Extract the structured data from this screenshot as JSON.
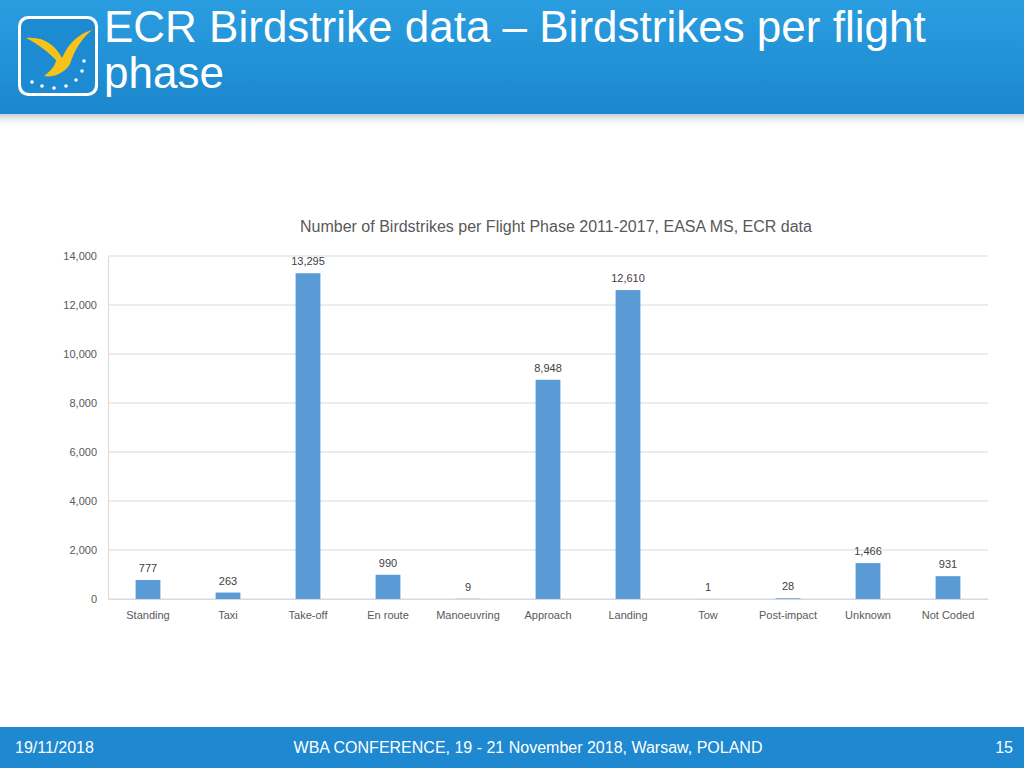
{
  "slide": {
    "title": "ECR Birdstrike data – Birdstrikes per flight phase",
    "footer_date": "19/11/2018",
    "footer_text": "WBA CONFERENCE, 19 - 21 November 2018, Warsaw, POLAND",
    "page_number": 15
  },
  "chart_data": {
    "type": "bar",
    "title": "Number of Birdstrikes per Flight Phase 2011-2017, EASA MS, ECR data",
    "categories": [
      "Standing",
      "Taxi",
      "Take-off",
      "En route",
      "Manoeuvring",
      "Approach",
      "Landing",
      "Tow",
      "Post-impact",
      "Unknown",
      "Not Coded"
    ],
    "values": [
      777,
      263,
      13295,
      990,
      9,
      8948,
      12610,
      1,
      28,
      1466,
      931
    ],
    "value_labels": [
      "777",
      "263",
      "13,295",
      "990",
      "9",
      "8,948",
      "12,610",
      "1",
      "28",
      "1,466",
      "931"
    ],
    "color": "#5b9bd5",
    "ylim": [
      0,
      14000
    ],
    "yticks": [
      0,
      {
        "value": 2000,
        "label": "2,000"
      },
      {
        "value": 4000,
        "label": "4,000"
      },
      {
        "value": 6000,
        "label": "6,000"
      },
      {
        "value": 8000,
        "label": "8,000"
      },
      {
        "value": 10000,
        "label": "10,000"
      },
      {
        "value": 12000,
        "label": "12,000"
      },
      {
        "value": 14000,
        "label": "14,000"
      }
    ],
    "grid": true,
    "data_labels": true
  }
}
